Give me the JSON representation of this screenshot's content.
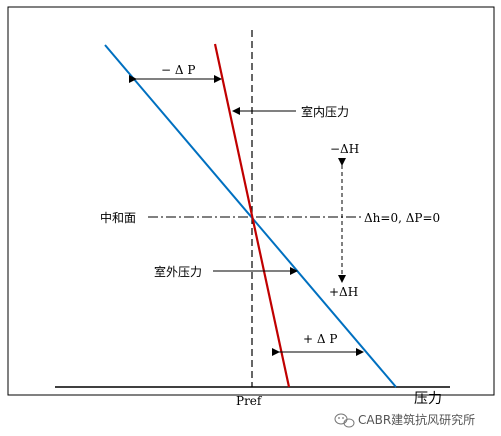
{
  "labels": {
    "indoor_pressure": "室内压力",
    "outdoor_pressure": "室外压力",
    "neutral_plane": "中和面",
    "neutral_condition": "Δh=0, ΔP=0",
    "minus_delta_p": "− Δ P",
    "plus_delta_p": "+ Δ P",
    "minus_delta_h": "−ΔH",
    "plus_delta_h": "+ΔH",
    "pref": "Pref",
    "pressure_axis": "压力"
  },
  "watermark": {
    "text": "CABR建筑抗风研究所",
    "icon": "wechat-icon"
  },
  "colors": {
    "indoor_line": "#c00000",
    "outdoor_line": "#0070c0",
    "axis": "#000000"
  }
}
